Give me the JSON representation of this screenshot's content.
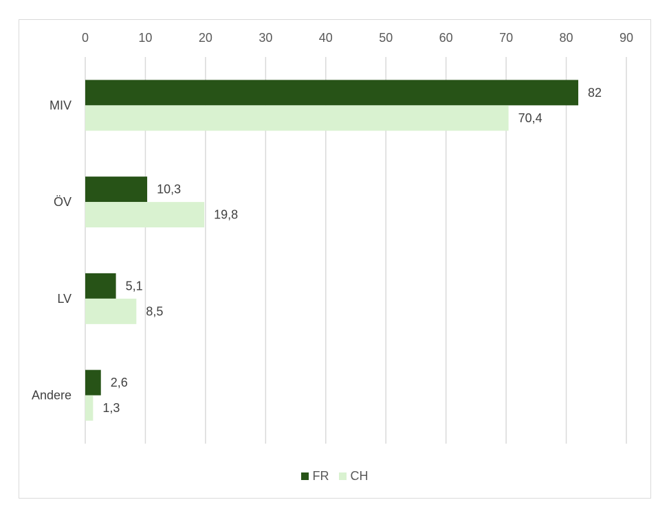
{
  "chart_data": {
    "type": "bar",
    "orientation": "horizontal",
    "categories": [
      "MIV",
      "ÖV",
      "LV",
      "Andere"
    ],
    "series": [
      {
        "name": "FR",
        "values": [
          82,
          10.3,
          5.1,
          2.6
        ],
        "labels": [
          "82",
          "10,3",
          "5,1",
          "2,6"
        ],
        "color": "#275317"
      },
      {
        "name": "CH",
        "values": [
          70.4,
          19.8,
          8.5,
          1.3
        ],
        "labels": [
          "70,4",
          "19,8",
          "8,5",
          "1,3"
        ],
        "color": "#d9f2d0"
      }
    ],
    "xlim": [
      0,
      90
    ],
    "xticks": [
      "0",
      "10",
      "20",
      "30",
      "40",
      "50",
      "60",
      "70",
      "80",
      "90"
    ],
    "axis_position": "top",
    "grid": true,
    "gridline_color": "#d9d9d9",
    "legend": "bottom"
  }
}
